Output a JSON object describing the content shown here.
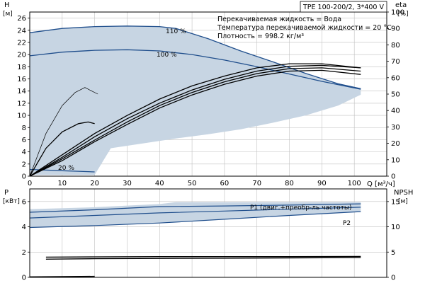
{
  "chart_data": {
    "type": "line",
    "title": "TPE 100-200/2, 3*400 V",
    "info": {
      "liquid": "Перекачиваемая жидкость = Вода",
      "temperature": "Температура перекачиваемой жидкости = 20 °C",
      "density": "Плотность = 998.2 кг/м³"
    },
    "x_axis": {
      "label": "Q [м³/ч]",
      "range": [
        0,
        110
      ],
      "ticks": [
        "0",
        "10",
        "20",
        "30",
        "40",
        "50",
        "60",
        "70",
        "80",
        "90",
        "100"
      ]
    },
    "head_panel": {
      "y_left_label": "H",
      "y_left_unit": "[м]",
      "y_left_range": [
        0,
        27
      ],
      "y_left_ticks": [
        "0",
        "2",
        "4",
        "6",
        "8",
        "10",
        "12",
        "14",
        "16",
        "18",
        "20",
        "22",
        "24",
        "26"
      ],
      "y_right_label": "eta",
      "y_right_unit": "[%]",
      "y_right_range": [
        0,
        100
      ],
      "y_right_ticks": [
        "0",
        "10",
        "20",
        "30",
        "40",
        "50",
        "60",
        "70",
        "80",
        "90",
        "100"
      ],
      "region_envelope": {
        "upper": [
          [
            0,
            23.6
          ],
          [
            10,
            24.3
          ],
          [
            20,
            24.6
          ],
          [
            30,
            24.7
          ],
          [
            40,
            24.6
          ],
          [
            45,
            24.3
          ],
          [
            55,
            22.6
          ],
          [
            65,
            20.6
          ],
          [
            75,
            18.8
          ],
          [
            85,
            16.9
          ],
          [
            95,
            15.2
          ],
          [
            102,
            14.4
          ]
        ],
        "lower": [
          [
            102,
            13.4
          ],
          [
            95,
            11.6
          ],
          [
            85,
            10.0
          ],
          [
            75,
            8.8
          ],
          [
            65,
            7.7
          ],
          [
            55,
            6.9
          ],
          [
            45,
            6.2
          ],
          [
            35,
            5.4
          ],
          [
            25,
            4.6
          ],
          [
            20,
            0.2
          ],
          [
            8,
            0.2
          ],
          [
            0,
            0.2
          ]
        ]
      },
      "head_curves": [
        {
          "label": "110 %",
          "points": [
            [
              0,
              23.6
            ],
            [
              10,
              24.3
            ],
            [
              20,
              24.6
            ],
            [
              30,
              24.7
            ],
            [
              40,
              24.6
            ],
            [
              45,
              24.3
            ],
            [
              55,
              22.6
            ],
            [
              65,
              20.6
            ],
            [
              75,
              18.8
            ],
            [
              85,
              16.9
            ],
            [
              95,
              15.2
            ],
            [
              102,
              14.4
            ]
          ]
        },
        {
          "label": "100 %",
          "points": [
            [
              0,
              19.8
            ],
            [
              10,
              20.4
            ],
            [
              20,
              20.7
            ],
            [
              30,
              20.8
            ],
            [
              40,
              20.6
            ],
            [
              50,
              20.0
            ],
            [
              60,
              19.1
            ],
            [
              70,
              18.0
            ],
            [
              80,
              16.8
            ],
            [
              90,
              15.6
            ],
            [
              102,
              14.3
            ]
          ]
        },
        {
          "label": "20 %",
          "points": [
            [
              0,
              1.1
            ],
            [
              5,
              1.0
            ],
            [
              10,
              0.9
            ],
            [
              15,
              0.8
            ],
            [
              20,
              0.7
            ]
          ]
        }
      ],
      "eta_curves": [
        {
          "points": [
            [
              0,
              0
            ],
            [
              5,
              26
            ],
            [
              10,
              43
            ],
            [
              14,
              51
            ],
            [
              17,
              54
            ],
            [
              19,
              52
            ],
            [
              21,
              50
            ]
          ]
        },
        {
          "points": [
            [
              0,
              0
            ],
            [
              5,
              17
            ],
            [
              10,
              27
            ],
            [
              15,
              32
            ],
            [
              18,
              33
            ],
            [
              20,
              32
            ]
          ]
        },
        {
          "points": [
            [
              0,
              0
            ],
            [
              10,
              13
            ],
            [
              20,
              26
            ],
            [
              30,
              37
            ],
            [
              40,
              47
            ],
            [
              50,
              55
            ],
            [
              60,
              61
            ],
            [
              70,
              66
            ],
            [
              80,
              68.5
            ],
            [
              90,
              68.5
            ],
            [
              102,
              66
            ]
          ]
        },
        {
          "points": [
            [
              0,
              0
            ],
            [
              10,
              11.5
            ],
            [
              20,
              24
            ],
            [
              30,
              35
            ],
            [
              40,
              44.5
            ],
            [
              50,
              52.5
            ],
            [
              60,
              59
            ],
            [
              70,
              64
            ],
            [
              80,
              67
            ],
            [
              90,
              67.5
            ],
            [
              102,
              66
            ]
          ]
        },
        {
          "points": [
            [
              0,
              0
            ],
            [
              10,
              10.5
            ],
            [
              20,
              22
            ],
            [
              30,
              33
            ],
            [
              40,
              43
            ],
            [
              50,
              51
            ],
            [
              60,
              57.5
            ],
            [
              70,
              62.5
            ],
            [
              80,
              65.5
            ],
            [
              90,
              66
            ],
            [
              102,
              64
            ]
          ]
        },
        {
          "points": [
            [
              0,
              0
            ],
            [
              10,
              9.5
            ],
            [
              20,
              21
            ],
            [
              30,
              31.5
            ],
            [
              40,
              41.5
            ],
            [
              50,
              49.5
            ],
            [
              60,
              56
            ],
            [
              70,
              61
            ],
            [
              80,
              64
            ],
            [
              90,
              64.5
            ],
            [
              102,
              62
            ]
          ]
        }
      ]
    },
    "power_panel": {
      "y_left_label": "P",
      "y_left_unit": "[кВт]",
      "y_left_range": [
        0,
        7
      ],
      "y_left_ticks": [
        "0",
        "2",
        "4",
        "6"
      ],
      "y_right_label": "NPSH",
      "y_right_unit": "[м]",
      "y_right_range": [
        0,
        17.5
      ],
      "y_right_ticks": [
        "0",
        "5",
        "10",
        "15"
      ],
      "region_envelope": {
        "upper": [
          [
            0,
            5.4
          ],
          [
            20,
            5.55
          ],
          [
            40,
            5.8
          ],
          [
            45,
            5.95
          ],
          [
            60,
            5.95
          ],
          [
            80,
            5.95
          ],
          [
            102,
            5.95
          ]
        ],
        "lower": [
          [
            102,
            5.2
          ],
          [
            80,
            4.9
          ],
          [
            60,
            4.6
          ],
          [
            40,
            4.3
          ],
          [
            20,
            4.1
          ],
          [
            0,
            4.0
          ]
        ]
      },
      "power_curves": [
        {
          "label": "P1 (двиг.+преобр-ль частоты)",
          "points": [
            [
              0,
              5.15
            ],
            [
              20,
              5.35
            ],
            [
              40,
              5.6
            ],
            [
              60,
              5.65
            ],
            [
              80,
              5.72
            ],
            [
              102,
              5.82
            ]
          ]
        },
        {
          "label": "",
          "points": [
            [
              0,
              4.7
            ],
            [
              20,
              4.9
            ],
            [
              40,
              5.1
            ],
            [
              60,
              5.25
            ],
            [
              80,
              5.4
            ],
            [
              102,
              5.55
            ]
          ]
        },
        {
          "label": "P2",
          "points": [
            [
              0,
              3.95
            ],
            [
              20,
              4.1
            ],
            [
              40,
              4.3
            ],
            [
              60,
              4.6
            ],
            [
              80,
              4.9
            ],
            [
              102,
              5.2
            ]
          ]
        }
      ],
      "npsh_curves": [
        {
          "points": [
            [
              5,
              4.0
            ],
            [
              20,
              4.05
            ],
            [
              40,
              4.1
            ],
            [
              60,
              4.1
            ],
            [
              80,
              4.1
            ],
            [
              102,
              4.15
            ]
          ]
        },
        {
          "points": [
            [
              5,
              3.6
            ],
            [
              20,
              3.7
            ],
            [
              40,
              3.75
            ],
            [
              60,
              3.8
            ],
            [
              80,
              3.85
            ],
            [
              102,
              3.9
            ]
          ]
        },
        {
          "points": [
            [
              0,
              0.1
            ],
            [
              10,
              0.15
            ],
            [
              20,
              0.2
            ]
          ]
        }
      ]
    },
    "colors": {
      "region": "#c7d5e3",
      "head": "#1f4e8c",
      "eta": "#000000",
      "grid": "#c0c0c0"
    },
    "grid": true
  }
}
